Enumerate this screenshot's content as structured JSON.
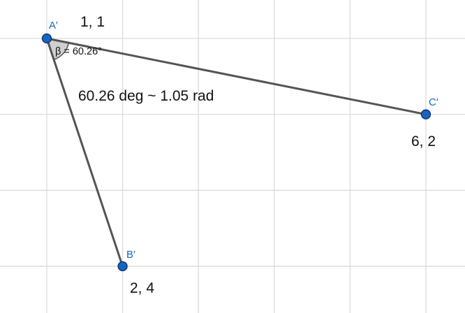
{
  "canvas": {
    "background_color": "#ffffff",
    "grid_color": "#d9d9d9",
    "segment_color": "#545454",
    "point_color": "#1565c0"
  },
  "points": [
    {
      "id": "A",
      "name": "A′",
      "x": 1,
      "y": 1,
      "coord_label": "1, 1"
    },
    {
      "id": "B",
      "name": "B′",
      "x": 2,
      "y": 4,
      "coord_label": "2, 4"
    },
    {
      "id": "C",
      "name": "C′",
      "x": 6,
      "y": 2,
      "coord_label": "6, 2"
    }
  ],
  "segments": [
    {
      "from": "A",
      "to": "C"
    },
    {
      "from": "A",
      "to": "B"
    }
  ],
  "angle": {
    "vertex": "A",
    "label": "β = 60.26°",
    "value_deg": 60.26
  },
  "annotation": "60.26 deg ~ 1.05 rad"
}
